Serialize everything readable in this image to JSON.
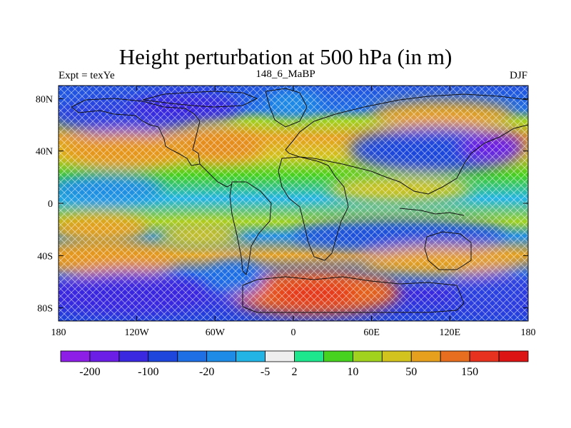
{
  "title": "Height perturbation at 500 hPa (in m)",
  "subtitle_left": "Expt = texYe",
  "subtitle_center": "148_6_MaBP",
  "subtitle_right": "DJF",
  "map": {
    "lon_range": [
      -180,
      180
    ],
    "lat_range": [
      -90,
      90
    ],
    "x_ticks": [
      {
        "value": -180,
        "label": "180"
      },
      {
        "value": -120,
        "label": "120W"
      },
      {
        "value": -60,
        "label": "60W"
      },
      {
        "value": 0,
        "label": "0"
      },
      {
        "value": 60,
        "label": "60E"
      },
      {
        "value": 120,
        "label": "120E"
      },
      {
        "value": 180,
        "label": "180"
      }
    ],
    "y_ticks": [
      {
        "value": 80,
        "label": "80N"
      },
      {
        "value": 40,
        "label": "40N"
      },
      {
        "value": 0,
        "label": "0"
      },
      {
        "value": -40,
        "label": "40S"
      },
      {
        "value": -80,
        "label": "80S"
      }
    ]
  },
  "colorbar": {
    "colors": [
      "#8c1ee6",
      "#6a1ee6",
      "#3a28e0",
      "#1e46dc",
      "#1e6ee6",
      "#1e8ce6",
      "#23b4e6",
      "#eeeeee",
      "#1ee68c",
      "#46d21e",
      "#a0d21e",
      "#d2c31e",
      "#e6a01e",
      "#e66e1e",
      "#e6321e",
      "#dc1414"
    ],
    "labels": [
      {
        "after_box": 1,
        "text": "-200"
      },
      {
        "after_box": 3,
        "text": "-100"
      },
      {
        "after_box": 5,
        "text": "-20"
      },
      {
        "after_box": 7,
        "text": "-5"
      },
      {
        "after_box": 8,
        "text": "2"
      },
      {
        "after_box": 10,
        "text": "10"
      },
      {
        "after_box": 12,
        "text": "50"
      },
      {
        "after_box": 14,
        "text": "150"
      }
    ]
  }
}
